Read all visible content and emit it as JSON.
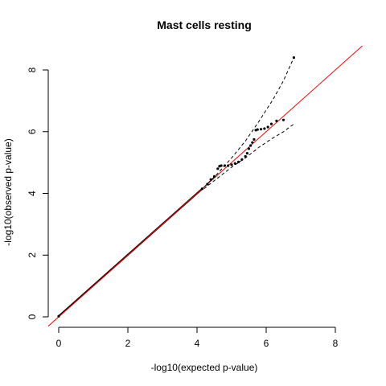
{
  "chart_data": {
    "type": "scatter",
    "title": "Mast cells resting",
    "xlabel": "-log10(expected p-value)",
    "ylabel": "-log10(observed p-value)",
    "xlim": [
      0,
      8
    ],
    "ylim": [
      0,
      8
    ],
    "x_ticks": [
      "0",
      "2",
      "4",
      "6",
      "8"
    ],
    "y_ticks": [
      "0",
      "2",
      "4",
      "6",
      "8"
    ],
    "grid": false,
    "legend": "none",
    "reference_line": {
      "slope": 1,
      "intercept": 0,
      "color": "#ff0000"
    },
    "confidence_band": {
      "style": "dashed",
      "upper": [
        [
          4.2,
          4.2
        ],
        [
          4.6,
          4.65
        ],
        [
          5.0,
          5.15
        ],
        [
          5.4,
          5.7
        ],
        [
          5.8,
          6.35
        ],
        [
          6.2,
          7.05
        ],
        [
          6.5,
          7.65
        ],
        [
          6.8,
          8.4
        ]
      ],
      "lower": [
        [
          4.2,
          4.15
        ],
        [
          4.6,
          4.5
        ],
        [
          5.0,
          4.85
        ],
        [
          5.4,
          5.15
        ],
        [
          5.8,
          5.5
        ],
        [
          6.2,
          5.8
        ],
        [
          6.5,
          6.0
        ],
        [
          6.8,
          6.25
        ]
      ]
    },
    "points": [
      [
        0.0,
        0.02
      ],
      [
        4.15,
        4.15
      ],
      [
        4.3,
        4.3
      ],
      [
        4.4,
        4.45
      ],
      [
        4.5,
        4.55
      ],
      [
        4.6,
        4.8
      ],
      [
        4.65,
        4.88
      ],
      [
        4.7,
        4.9
      ],
      [
        4.8,
        4.9
      ],
      [
        4.9,
        4.9
      ],
      [
        5.0,
        4.93
      ],
      [
        5.1,
        4.97
      ],
      [
        5.2,
        5.02
      ],
      [
        5.3,
        5.1
      ],
      [
        5.4,
        5.2
      ],
      [
        5.45,
        5.3
      ],
      [
        5.5,
        5.45
      ],
      [
        5.55,
        5.55
      ],
      [
        5.6,
        5.65
      ],
      [
        5.65,
        5.75
      ],
      [
        5.7,
        6.05
      ],
      [
        5.75,
        6.07
      ],
      [
        5.85,
        6.08
      ],
      [
        5.95,
        6.1
      ],
      [
        6.05,
        6.15
      ],
      [
        6.15,
        6.25
      ],
      [
        6.3,
        6.35
      ],
      [
        6.5,
        6.38
      ],
      [
        6.8,
        8.4
      ]
    ],
    "point_color": "#000000"
  }
}
